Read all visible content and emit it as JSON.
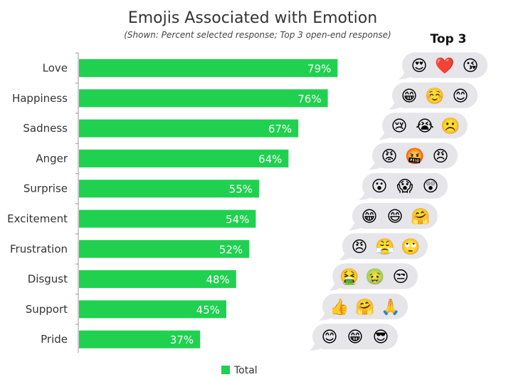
{
  "chart_data": {
    "type": "bar",
    "orientation": "horizontal",
    "title": "Emojis Associated with Emotion",
    "subtitle": "(Shown: Percent selected response; Top 3 open-end response)",
    "categories": [
      "Love",
      "Happiness",
      "Sadness",
      "Anger",
      "Surprise",
      "Excitement",
      "Frustration",
      "Disgust",
      "Support",
      "Pride"
    ],
    "series": [
      {
        "name": "Total",
        "values": [
          79,
          76,
          67,
          64,
          55,
          54,
          52,
          48,
          45,
          37
        ],
        "color": "#1fd14f"
      }
    ],
    "value_labels": [
      "79%",
      "76%",
      "67%",
      "64%",
      "55%",
      "54%",
      "52%",
      "48%",
      "45%",
      "37%"
    ],
    "xlim": [
      0,
      100
    ],
    "grid": false,
    "legend": "bottom-center"
  },
  "top3": {
    "heading": "Top 3",
    "emojis": [
      [
        "😍",
        "❤️",
        "😘"
      ],
      [
        "😁",
        "☺️",
        "😊"
      ],
      [
        "😢",
        "😭",
        "☹️"
      ],
      [
        "😡",
        "🤬",
        "😠"
      ],
      [
        "😮",
        "😱",
        "😲"
      ],
      [
        "😁",
        "😄",
        "🤗"
      ],
      [
        "😠",
        "😤",
        "🙄"
      ],
      [
        "🤮",
        "🤢",
        "😒"
      ],
      [
        "👍",
        "🤗",
        "🙏"
      ],
      [
        "😊",
        "😁",
        "😎"
      ]
    ],
    "bubble_color": "#e5e5ea"
  }
}
